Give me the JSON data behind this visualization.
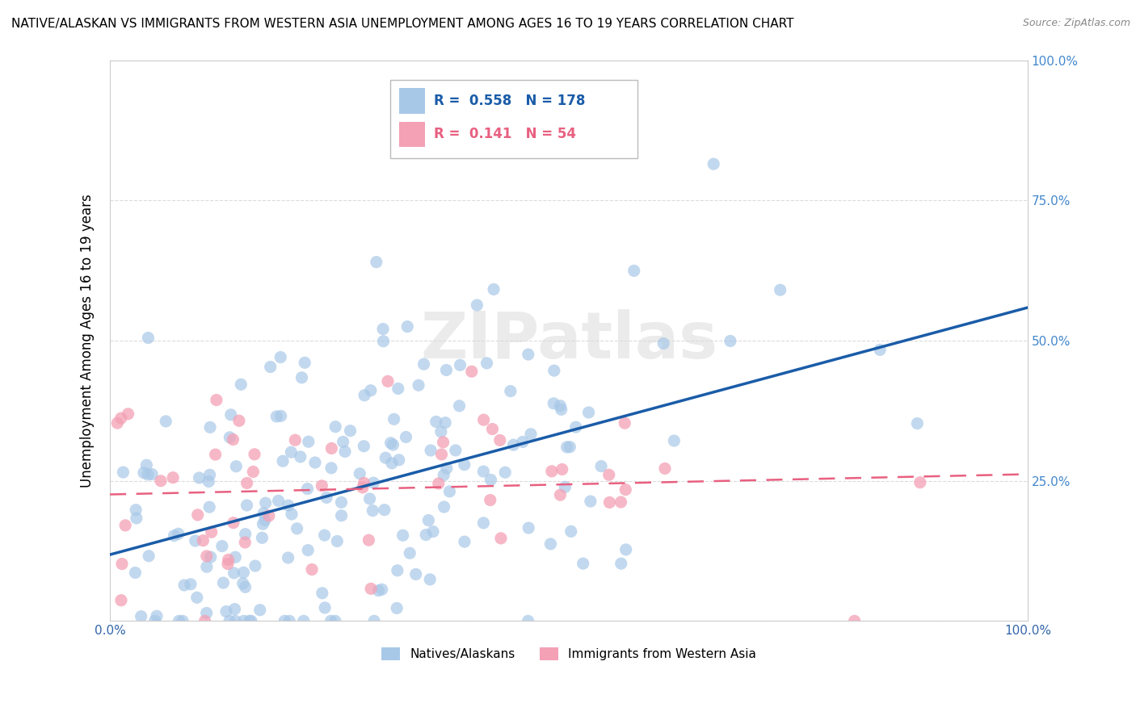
{
  "title": "NATIVE/ALASKAN VS IMMIGRANTS FROM WESTERN ASIA UNEMPLOYMENT AMONG AGES 16 TO 19 YEARS CORRELATION CHART",
  "source": "Source: ZipAtlas.com",
  "ylabel": "Unemployment Among Ages 16 to 19 years",
  "xlim": [
    0.0,
    1.0
  ],
  "ylim": [
    0.0,
    1.0
  ],
  "xticks": [
    0.0,
    0.25,
    0.5,
    0.75,
    1.0
  ],
  "yticks": [
    0.0,
    0.25,
    0.5,
    0.75,
    1.0
  ],
  "xticklabels": [
    "0.0%",
    "",
    "",
    "",
    "100.0%"
  ],
  "ylabels_left": [
    "",
    "",
    "",
    "",
    ""
  ],
  "ylabels_right": [
    "",
    "25.0%",
    "50.0%",
    "75.0%",
    "100.0%"
  ],
  "blue_color": "#a8c8e8",
  "pink_color": "#f4a0b5",
  "blue_line_color": "#1a5ca8",
  "pink_line_color": "#e86080",
  "R_blue": 0.558,
  "N_blue": 178,
  "R_pink": 0.141,
  "N_pink": 54,
  "legend_labels": [
    "Natives/Alaskans",
    "Immigrants from Western Asia"
  ],
  "watermark": "ZIPatlas",
  "background_color": "#ffffff",
  "grid_color": "#cccccc",
  "right_tick_color": "#4488cc"
}
